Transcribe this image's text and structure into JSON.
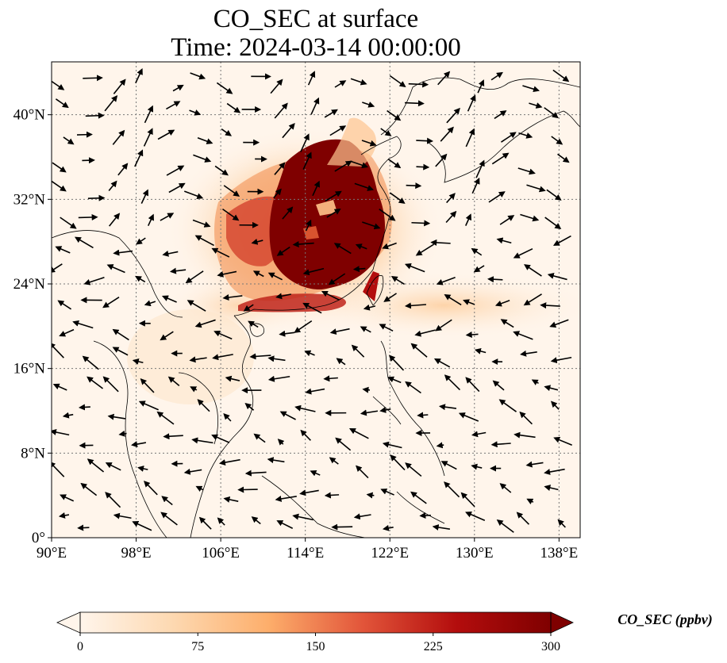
{
  "figure": {
    "title_line1": "CO_SEC at surface",
    "title_line2": "Time: 2024-03-14 00:00:00"
  },
  "map": {
    "lon_range": [
      90,
      140
    ],
    "lat_range": [
      0,
      45
    ],
    "x_ticks": [
      {
        "value": 90,
        "label": "90°E"
      },
      {
        "value": 98,
        "label": "98°E"
      },
      {
        "value": 106,
        "label": "106°E"
      },
      {
        "value": 114,
        "label": "114°E"
      },
      {
        "value": 122,
        "label": "122°E"
      },
      {
        "value": 130,
        "label": "130°E"
      },
      {
        "value": 138,
        "label": "138°E"
      }
    ],
    "y_ticks": [
      {
        "value": 0,
        "label": "0°"
      },
      {
        "value": 8,
        "label": "8°N"
      },
      {
        "value": 16,
        "label": "16°N"
      },
      {
        "value": 24,
        "label": "24°N"
      },
      {
        "value": 32,
        "label": "32°N"
      },
      {
        "value": 40,
        "label": "40°N"
      }
    ],
    "gridlines": true
  },
  "colorbar": {
    "label": "CO_SEC (ppbv)",
    "min": 0,
    "max": 300,
    "extend": "both",
    "ticks": [
      {
        "value": 0,
        "label": "0"
      },
      {
        "value": 75,
        "label": "75"
      },
      {
        "value": 150,
        "label": "150"
      },
      {
        "value": 225,
        "label": "225"
      },
      {
        "value": 300,
        "label": "300"
      }
    ],
    "colors": [
      "#fff5eb",
      "#fdd8b0",
      "#fdae6b",
      "#e2553a",
      "#b30d0d",
      "#7f0000"
    ]
  }
}
